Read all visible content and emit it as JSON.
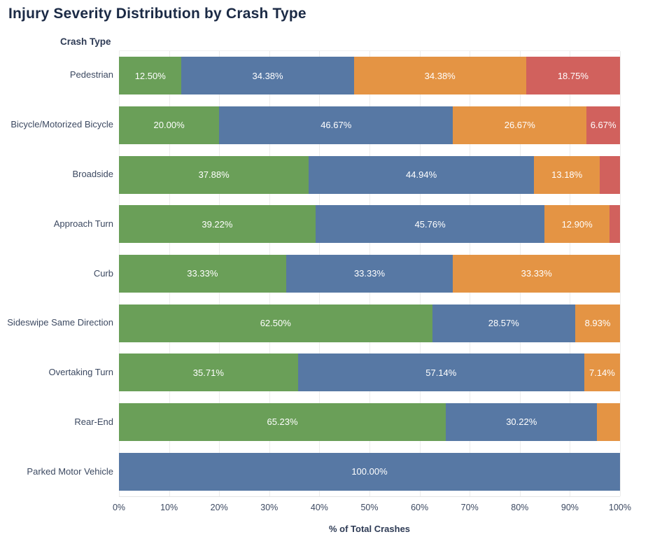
{
  "title": "Injury Severity Distribution by Crash Type",
  "chart_data": {
    "type": "bar",
    "orientation": "horizontal",
    "stacked": true,
    "column_header": "Crash Type",
    "xlabel": "% of Total Crashes",
    "x_ticks": [
      "0%",
      "10%",
      "20%",
      "30%",
      "40%",
      "50%",
      "60%",
      "70%",
      "80%",
      "90%",
      "100%"
    ],
    "xlim": [
      0,
      100
    ],
    "grid": true,
    "legend": "none",
    "palette": {
      "green": "#6a9f58",
      "blue": "#5778a4",
      "orange": "#e49444",
      "red": "#d1615d"
    },
    "rows": [
      {
        "category": "Pedestrian",
        "segments": [
          {
            "color": "green",
            "value": 12.5,
            "label": "12.50%"
          },
          {
            "color": "blue",
            "value": 34.38,
            "label": "34.38%"
          },
          {
            "color": "orange",
            "value": 34.38,
            "label": "34.38%"
          },
          {
            "color": "red",
            "value": 18.75,
            "label": "18.75%"
          }
        ]
      },
      {
        "category": "Bicycle/Motorized Bicycle",
        "segments": [
          {
            "color": "green",
            "value": 20.0,
            "label": "20.00%"
          },
          {
            "color": "blue",
            "value": 46.67,
            "label": "46.67%"
          },
          {
            "color": "orange",
            "value": 26.67,
            "label": "26.67%"
          },
          {
            "color": "red",
            "value": 6.67,
            "label": "6.67%"
          }
        ]
      },
      {
        "category": "Broadside",
        "segments": [
          {
            "color": "green",
            "value": 37.88,
            "label": "37.88%"
          },
          {
            "color": "blue",
            "value": 44.94,
            "label": "44.94%"
          },
          {
            "color": "orange",
            "value": 13.18,
            "label": "13.18%"
          },
          {
            "color": "red",
            "value": 4.0,
            "label": ""
          }
        ]
      },
      {
        "category": "Approach Turn",
        "segments": [
          {
            "color": "green",
            "value": 39.22,
            "label": "39.22%"
          },
          {
            "color": "blue",
            "value": 45.76,
            "label": "45.76%"
          },
          {
            "color": "orange",
            "value": 12.9,
            "label": "12.90%"
          },
          {
            "color": "red",
            "value": 2.12,
            "label": ""
          }
        ]
      },
      {
        "category": "Curb",
        "segments": [
          {
            "color": "green",
            "value": 33.33,
            "label": "33.33%"
          },
          {
            "color": "blue",
            "value": 33.33,
            "label": "33.33%"
          },
          {
            "color": "orange",
            "value": 33.33,
            "label": "33.33%"
          }
        ]
      },
      {
        "category": "Sideswipe Same Direction",
        "segments": [
          {
            "color": "green",
            "value": 62.5,
            "label": "62.50%"
          },
          {
            "color": "blue",
            "value": 28.57,
            "label": "28.57%"
          },
          {
            "color": "orange",
            "value": 8.93,
            "label": "8.93%"
          }
        ]
      },
      {
        "category": "Overtaking Turn",
        "segments": [
          {
            "color": "green",
            "value": 35.71,
            "label": "35.71%"
          },
          {
            "color": "blue",
            "value": 57.14,
            "label": "57.14%"
          },
          {
            "color": "orange",
            "value": 7.14,
            "label": "7.14%"
          }
        ]
      },
      {
        "category": "Rear-End",
        "segments": [
          {
            "color": "green",
            "value": 65.23,
            "label": "65.23%"
          },
          {
            "color": "blue",
            "value": 30.22,
            "label": "30.22%"
          },
          {
            "color": "orange",
            "value": 4.55,
            "label": ""
          }
        ]
      },
      {
        "category": "Parked Motor Vehicle",
        "segments": [
          {
            "color": "blue",
            "value": 100.0,
            "label": "100.00%"
          }
        ]
      }
    ]
  }
}
